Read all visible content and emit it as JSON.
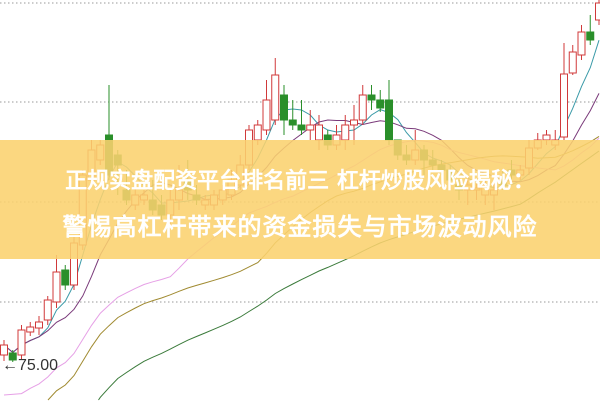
{
  "title": {
    "line1": "正规实盘配资平台排名前三 杠杆炒股风险揭秘：",
    "line2": "警惕高杠杆带来的资金损失与市场波动风险"
  },
  "chart_data": {
    "type": "candlestick",
    "grid": true,
    "low_marker_label": "75.00",
    "colors": {
      "up": "#d0393a",
      "down": "#2a8f2a",
      "banner": "#fbd26e"
    },
    "moving_averages": [
      {
        "period": 5,
        "color": "#3a9aa8"
      },
      {
        "period": 10,
        "color": "#7a3a7a"
      },
      {
        "period": 20,
        "color": "#e6a0e6"
      },
      {
        "period": 30,
        "color": "#a08a30"
      },
      {
        "period": 60,
        "color": "#3a7a3a"
      }
    ],
    "ohlc": [
      [
        75.7,
        77.2,
        75.1,
        76.7
      ],
      [
        75.9,
        76.2,
        75.0,
        75.2
      ],
      [
        75.7,
        78.7,
        75.2,
        78.2
      ],
      [
        78.0,
        79.0,
        77.6,
        78.5
      ],
      [
        78.4,
        79.6,
        77.7,
        79.0
      ],
      [
        79.2,
        81.6,
        78.7,
        81.2
      ],
      [
        81.0,
        85.7,
        80.4,
        84.0
      ],
      [
        84.2,
        84.7,
        82.2,
        82.7
      ],
      [
        82.7,
        87.7,
        82.2,
        86.9
      ],
      [
        86.7,
        94.2,
        86.2,
        93.7
      ],
      [
        93.2,
        97.2,
        92.7,
        96.2
      ],
      [
        95.2,
        97.2,
        94.7,
        96.7
      ],
      [
        97.7,
        102.7,
        93.2,
        93.7
      ],
      [
        95.7,
        96.2,
        91.7,
        94.7
      ],
      [
        92.2,
        94.2,
        90.7,
        91.2
      ],
      [
        90.7,
        92.7,
        90.2,
        91.7
      ],
      [
        91.2,
        92.2,
        90.7,
        91.7
      ],
      [
        91.2,
        93.2,
        89.7,
        90.2
      ],
      [
        90.7,
        91.7,
        89.2,
        89.7
      ],
      [
        89.7,
        92.2,
        88.7,
        91.2
      ],
      [
        91.2,
        94.7,
        90.2,
        92.2
      ],
      [
        93.2,
        95.2,
        91.2,
        92.2
      ],
      [
        91.7,
        92.7,
        90.7,
        91.2
      ],
      [
        90.7,
        91.7,
        90.2,
        91.2
      ],
      [
        90.7,
        92.2,
        90.2,
        91.7
      ],
      [
        91.2,
        92.7,
        90.7,
        92.2
      ],
      [
        91.7,
        94.2,
        91.2,
        93.2
      ],
      [
        92.7,
        95.7,
        92.2,
        94.7
      ],
      [
        94.7,
        98.7,
        94.2,
        98.2
      ],
      [
        97.2,
        99.2,
        96.7,
        98.7
      ],
      [
        98.2,
        103.2,
        97.7,
        101.2
      ],
      [
        99.2,
        105.4,
        98.7,
        103.7
      ],
      [
        101.7,
        102.7,
        97.7,
        99.2
      ],
      [
        99.2,
        101.2,
        98.2,
        98.7
      ],
      [
        98.7,
        101.2,
        97.7,
        98.2
      ],
      [
        98.2,
        100.2,
        97.2,
        98.7
      ],
      [
        97.2,
        99.7,
        96.2,
        98.7
      ],
      [
        97.7,
        98.2,
        96.2,
        96.7
      ],
      [
        96.7,
        98.7,
        96.2,
        97.7
      ],
      [
        97.2,
        99.7,
        96.2,
        98.7
      ],
      [
        98.7,
        100.7,
        96.7,
        99.2
      ],
      [
        99.2,
        102.7,
        98.7,
        101.7
      ],
      [
        101.7,
        102.7,
        100.2,
        101.2
      ],
      [
        101.2,
        102.2,
        100.0,
        100.4
      ],
      [
        101.2,
        103.2,
        96.7,
        97.2
      ],
      [
        97.2,
        97.2,
        95.2,
        95.7
      ],
      [
        95.7,
        96.7,
        94.7,
        95.2
      ],
      [
        95.2,
        98.2,
        94.7,
        96.2
      ],
      [
        96.2,
        96.7,
        93.7,
        95.2
      ],
      [
        95.2,
        96.2,
        94.2,
        94.7
      ],
      [
        94.7,
        95.2,
        93.7,
        94.2
      ],
      [
        94.2,
        94.7,
        92.7,
        93.2
      ],
      [
        92.7,
        93.2,
        91.2,
        92.2
      ],
      [
        92.2,
        93.7,
        90.7,
        92.7
      ],
      [
        92.2,
        93.2,
        91.2,
        92.4
      ],
      [
        91.7,
        93.2,
        90.7,
        92.7
      ],
      [
        91.7,
        93.2,
        90.2,
        92.2
      ],
      [
        93.2,
        94.2,
        92.2,
        92.7
      ],
      [
        94.2,
        95.2,
        93.2,
        93.7
      ],
      [
        93.7,
        94.7,
        93.2,
        94.2
      ],
      [
        94.4,
        97.2,
        93.7,
        96.4
      ],
      [
        96.4,
        97.9,
        96.2,
        97.2
      ],
      [
        97.2,
        98.2,
        96.7,
        97.7
      ],
      [
        96.7,
        98.2,
        96.2,
        97.2
      ],
      [
        97.5,
        106.9,
        97.2,
        103.8
      ],
      [
        103.9,
        106.7,
        103.7,
        106.0
      ],
      [
        105.7,
        108.7,
        105.2,
        108.0
      ],
      [
        108.0,
        109.7,
        106.7,
        107.2
      ],
      [
        109.2,
        111.2,
        108.7,
        110.9
      ]
    ]
  }
}
